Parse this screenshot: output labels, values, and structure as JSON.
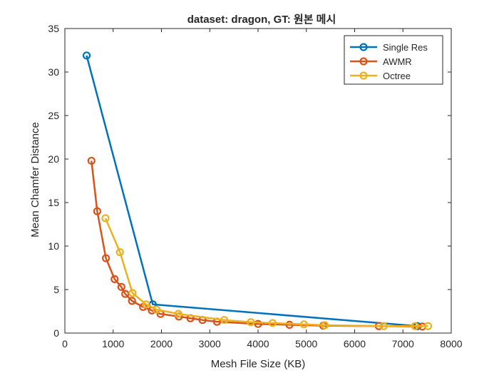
{
  "chart_data": {
    "type": "line",
    "title": "dataset: dragon, GT: 원본 메시",
    "xlabel": "Mesh File Size (KB)",
    "ylabel": "Mean Chamfer Distance",
    "xlim": [
      0,
      8000
    ],
    "ylim": [
      0,
      35
    ],
    "xticks": [
      0,
      1000,
      2000,
      3000,
      4000,
      5000,
      6000,
      7000,
      8000
    ],
    "yticks": [
      0,
      5,
      10,
      15,
      20,
      25,
      30,
      35
    ],
    "grid": false,
    "legend_position": "top-right",
    "series": [
      {
        "name": "Single Res",
        "color": "#0072BD",
        "x": [
          450,
          1820,
          7300
        ],
        "y": [
          31.9,
          3.3,
          0.8
        ]
      },
      {
        "name": "AWMR",
        "color": "#D95319",
        "x": [
          550,
          670,
          850,
          1030,
          1170,
          1250,
          1390,
          1620,
          1800,
          1980,
          2360,
          2600,
          2850,
          3150,
          4000,
          4650,
          5350,
          6500,
          7400
        ],
        "y": [
          19.8,
          14.0,
          8.6,
          6.2,
          5.3,
          4.5,
          3.7,
          3.0,
          2.6,
          2.2,
          1.9,
          1.7,
          1.5,
          1.3,
          1.05,
          0.95,
          0.85,
          0.8,
          0.75
        ]
      },
      {
        "name": "Octree",
        "color": "#EDB120",
        "x": [
          840,
          1140,
          1400,
          1680,
          1900,
          2350,
          3300,
          3850,
          4300,
          4950,
          5380,
          6600,
          7250,
          7520
        ],
        "y": [
          13.2,
          9.3,
          4.6,
          3.3,
          2.7,
          2.2,
          1.5,
          1.25,
          1.15,
          1.0,
          0.9,
          0.8,
          0.8,
          0.8
        ]
      }
    ]
  }
}
